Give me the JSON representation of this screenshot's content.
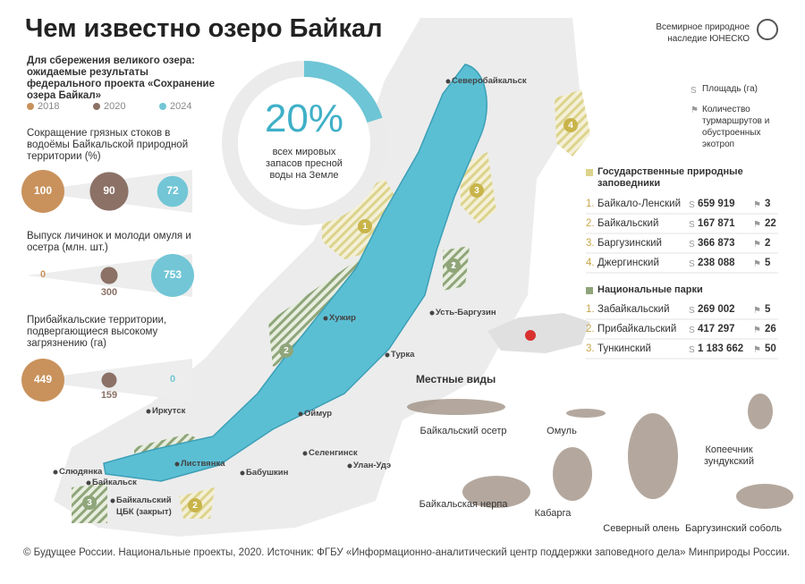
{
  "header": {
    "title": "Чем известно озеро Байкал",
    "unesco": "Всемирное природное наследие ЮНЕСКО"
  },
  "intro": "Для сбережения великого озера: ожидаемые результаты федерального проекта «Сохранение озера Байкал»",
  "years": [
    {
      "label": "2018",
      "color": "#c9925c"
    },
    {
      "label": "2020",
      "color": "#8b7166"
    },
    {
      "label": "2024",
      "color": "#72c6d6"
    }
  ],
  "metrics": [
    {
      "title": "Сокращение грязных стоков в водоёмы Байкальской природной территории (%)",
      "values": [
        100,
        90,
        72
      ]
    },
    {
      "title": "Выпуск личинок и молоди омуля и осетра (млн. шт.)",
      "values": [
        0,
        300,
        753
      ]
    },
    {
      "title": "Прибайкальские территории, подвергающиеся высокому загрязнению (га)",
      "values": [
        449,
        159,
        0
      ]
    }
  ],
  "share": {
    "value": 20,
    "label": "20%",
    "text": "всех мировых запасов пресной воды на Земле"
  },
  "legend": {
    "area": "Площадь (га)",
    "routes": "Количество турмаршрутов и обустроенных экотроп"
  },
  "reserves": {
    "title": "Государственные природные заповедники",
    "items": [
      {
        "num": "1.",
        "name": "Байкало-Ленский",
        "area": "659 919",
        "routes": 3
      },
      {
        "num": "2.",
        "name": "Байкальский",
        "area": "167 871",
        "routes": 22
      },
      {
        "num": "3.",
        "name": "Баргузинский",
        "area": "366 873",
        "routes": 2
      },
      {
        "num": "4.",
        "name": "Джергинский",
        "area": "238 088",
        "routes": 5
      }
    ]
  },
  "parks": {
    "title": "Национальные парки",
    "items": [
      {
        "num": "1.",
        "name": "Забайкальский",
        "area": "269 002",
        "routes": 5
      },
      {
        "num": "2.",
        "name": "Прибайкальский",
        "area": "417 297",
        "routes": 26
      },
      {
        "num": "3.",
        "name": "Тункинский",
        "area": "1 183 662",
        "routes": 50
      }
    ]
  },
  "map": {
    "cities": [
      "Северобайкальск",
      "Усть-Баргузин",
      "Хужир",
      "Турка",
      "Иркутск",
      "Оймур",
      "Листвянка",
      "Селенгинск",
      "Бабушкин",
      "Слюдянка",
      "Улан-Удэ",
      "Байкальск",
      "Байкальский ЦБК (закрыт)"
    ],
    "zones": [
      "1",
      "2",
      "3",
      "4",
      "1",
      "2",
      "3",
      "2"
    ]
  },
  "species": {
    "title": "Местные виды",
    "items": [
      "Байкальский осетр",
      "Омуль",
      "Байкальская нерпа",
      "Кабарга",
      "Северный олень",
      "Копеечник зундукский",
      "Баргузинский соболь"
    ]
  },
  "footer": "© Будущее России. Национальные проекты, 2020. Источник: ФГБУ «Информационно-аналитический центр поддержки заповедного дела» Минприроды России."
}
